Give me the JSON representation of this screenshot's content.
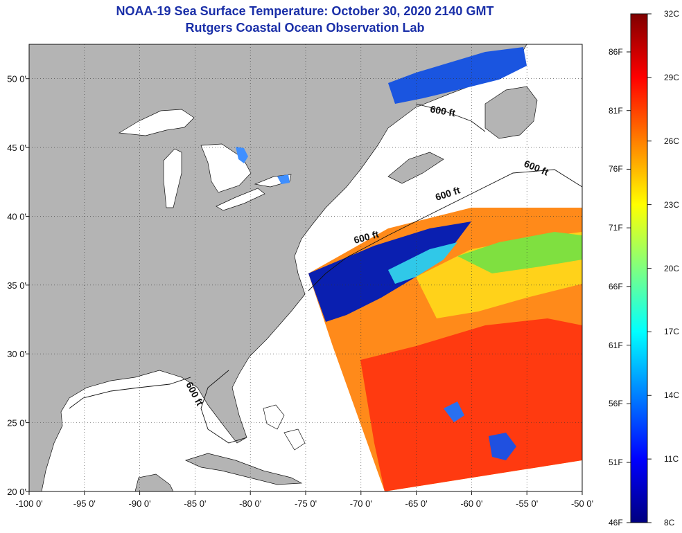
{
  "title": {
    "line1": "NOAA-19 Sea Surface Temperature:  October 30, 2020 2140 GMT",
    "line2": "Rutgers Coastal Ocean Observation Lab"
  },
  "map": {
    "lon_range": [
      -100,
      -50
    ],
    "lat_range": [
      20,
      52.5
    ],
    "x_ticks": [
      -100,
      -95,
      -90,
      -85,
      -80,
      -75,
      -70,
      -65,
      -60,
      -55,
      -50
    ],
    "x_tick_labels": [
      "-100 0'",
      "-95 0'",
      "-90 0'",
      "-85 0'",
      "-80 0'",
      "-75 0'",
      "-70 0'",
      "-65 0'",
      "-60 0'",
      "-55 0'",
      "-50 0'"
    ],
    "y_ticks": [
      20,
      25,
      30,
      35,
      40,
      45,
      50
    ],
    "y_tick_labels": [
      "20 0'",
      "25 0'",
      "30 0'",
      "35 0'",
      "40 0'",
      "45 0'",
      "50 0'"
    ],
    "contour_label": "600 ft",
    "land_color": "#b4b4b4",
    "grid": true
  },
  "colorbar": {
    "celsius_labels": [
      "32C",
      "29C",
      "26C",
      "23C",
      "20C",
      "17C",
      "14C",
      "11C",
      "8C"
    ],
    "fahrenheit_labels": [
      "86F",
      "81F",
      "76F",
      "71F",
      "66F",
      "61F",
      "56F",
      "51F",
      "46F"
    ],
    "celsius_range": [
      8,
      32
    ]
  }
}
